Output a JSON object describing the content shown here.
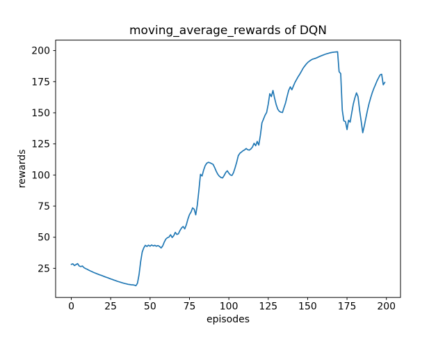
{
  "figure": {
    "background": "#ffffff",
    "text_color": "#000000"
  },
  "chart_data": {
    "type": "line",
    "title": "moving_average_rewards of DQN",
    "xlabel": "episodes",
    "ylabel": "rewards",
    "x_ticks": [
      0,
      25,
      50,
      75,
      100,
      125,
      150,
      175,
      200
    ],
    "y_ticks": [
      25,
      50,
      75,
      100,
      125,
      150,
      175,
      200
    ],
    "xlim": [
      -9.95,
      208.95
    ],
    "ylim": [
      1.6,
      208.4
    ],
    "grid": false,
    "legend": null,
    "line_color": "#1f77b4",
    "x_start": 0,
    "x_step": 1,
    "series": [
      {
        "name": "moving_average_rewards",
        "values": [
          28.2,
          28.6,
          27.2,
          28.0,
          28.8,
          26.9,
          26.4,
          26.9,
          25.6,
          24.9,
          24.3,
          23.6,
          23.0,
          22.4,
          21.8,
          21.3,
          20.8,
          20.3,
          19.8,
          19.4,
          18.9,
          18.4,
          17.9,
          17.5,
          17.0,
          16.5,
          16.1,
          15.6,
          15.2,
          14.7,
          14.3,
          13.9,
          13.5,
          13.1,
          12.8,
          12.5,
          12.2,
          12.0,
          11.8,
          11.7,
          11.5,
          11.0,
          13.0,
          20.0,
          30.0,
          38.0,
          41.5,
          43.5,
          42.6,
          43.6,
          42.8,
          43.8,
          43.0,
          43.5,
          42.8,
          43.3,
          42.6,
          41.3,
          43.0,
          46.0,
          48.5,
          49.6,
          50.1,
          52.0,
          49.8,
          51.2,
          53.9,
          52.2,
          52.8,
          55.5,
          57.5,
          58.6,
          56.7,
          60.0,
          64.5,
          68.2,
          70.3,
          73.6,
          72.5,
          68.0,
          76.0,
          88.0,
          100.5,
          99.2,
          104.0,
          107.5,
          109.5,
          110.2,
          109.8,
          109.2,
          108.5,
          106.0,
          103.0,
          100.5,
          99.0,
          98.0,
          97.6,
          99.5,
          102.0,
          103.4,
          101.5,
          100.0,
          99.7,
          102.0,
          106.0,
          110.5,
          115.5,
          117.5,
          118.5,
          119.5,
          120.2,
          121.3,
          120.3,
          120.0,
          121.0,
          122.5,
          125.5,
          123.5,
          127.0,
          124.0,
          132.0,
          141.8,
          145.0,
          148.0,
          150.3,
          157.0,
          165.3,
          163.0,
          167.9,
          162.0,
          156.8,
          153.0,
          151.2,
          150.5,
          150.2,
          154.0,
          158.0,
          163.3,
          168.0,
          170.8,
          168.5,
          171.5,
          174.5,
          176.8,
          179.0,
          181.0,
          183.2,
          185.5,
          187.3,
          189.0,
          190.3,
          191.4,
          192.3,
          193.0,
          193.4,
          193.8,
          194.3,
          194.9,
          195.5,
          196.0,
          196.5,
          197.0,
          197.4,
          197.7,
          198.1,
          198.4,
          198.6,
          198.8,
          198.9,
          199.0,
          183.0,
          181.5,
          152.0,
          143.5,
          143.0,
          136.5,
          144.0,
          142.5,
          150.0,
          157.0,
          162.0,
          166.0,
          163.0,
          152.0,
          143.0,
          134.0,
          139.5,
          146.0,
          152.0,
          157.5,
          162.0,
          166.0,
          169.5,
          172.5,
          175.5,
          178.0,
          180.5,
          181.0,
          172.5,
          174.5
        ]
      }
    ]
  }
}
